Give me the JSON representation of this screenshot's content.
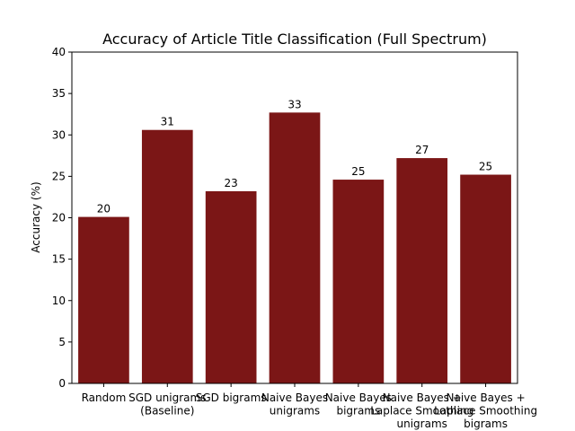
{
  "chart_data": {
    "type": "bar",
    "title": "Accuracy of Article Title Classification (Full Spectrum)",
    "xlabel": "",
    "ylabel": "Accuracy (%)",
    "ylim": [
      0,
      40
    ],
    "yticks": [
      0,
      5,
      10,
      15,
      20,
      25,
      30,
      35,
      40
    ],
    "categories": [
      [
        "Random"
      ],
      [
        "SGD unigrams",
        "(Baseline)"
      ],
      [
        "SGD bigrams"
      ],
      [
        "Naive Bayes",
        "unigrams"
      ],
      [
        "Naive Bayes",
        "bigrams"
      ],
      [
        "Naive Bayes +",
        "Laplace Smoothing",
        "unigrams"
      ],
      [
        "Naive Bayes +",
        "Laplace Smoothing",
        "bigrams"
      ]
    ],
    "values": [
      20.1,
      30.6,
      23.2,
      32.7,
      24.6,
      27.2,
      25.2
    ],
    "data_labels": [
      "20",
      "31",
      "23",
      "33",
      "25",
      "27",
      "25"
    ],
    "bar_color": "#7b1616",
    "grid": false,
    "legend": "none"
  }
}
